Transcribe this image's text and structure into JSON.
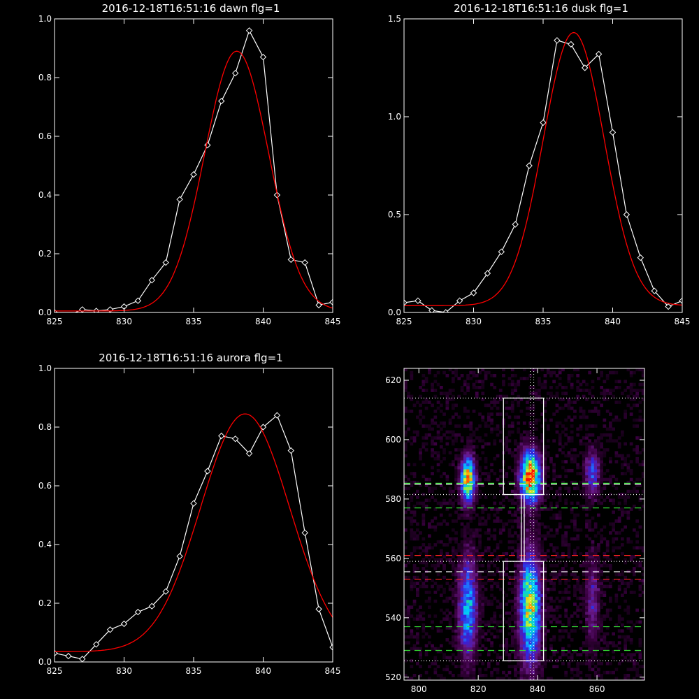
{
  "chart_data": [
    {
      "type": "line",
      "title": "2016-12-18T16:51:16 dawn flg=1",
      "xlim": [
        825,
        845
      ],
      "ylim": [
        0,
        1.0
      ],
      "xticks": [
        825,
        830,
        835,
        840,
        845
      ],
      "xtick_labels": [
        "825",
        "830",
        "835",
        "840",
        "845"
      ],
      "yticks": [
        0.0,
        0.2,
        0.4,
        0.6,
        0.8,
        1.0
      ],
      "ytick_labels": [
        "0.0",
        "0.2",
        "0.4",
        "0.6",
        "0.8",
        "1.0"
      ],
      "series": [
        {
          "color": "#ffffff",
          "marker": "diamond",
          "x": [
            825,
            826,
            827,
            828,
            829,
            830,
            831,
            832,
            833,
            834,
            835,
            836,
            837,
            838,
            839,
            840,
            841,
            842,
            843,
            844,
            845
          ],
          "y": [
            0.0,
            -0.01,
            0.01,
            0.005,
            0.01,
            0.02,
            0.04,
            0.11,
            0.17,
            0.385,
            0.47,
            0.57,
            0.72,
            0.815,
            0.96,
            0.87,
            0.4,
            0.18,
            0.17,
            0.025,
            0.035
          ]
        },
        {
          "color": "#ff0000",
          "fit": "gaussian",
          "amplitude": 0.885,
          "center": 838.1,
          "sigma": 2.3,
          "offset": 0.005
        }
      ]
    },
    {
      "type": "line",
      "title": "2016-12-18T16:51:16 dusk flg=1",
      "xlim": [
        825,
        845
      ],
      "ylim": [
        0,
        1.5
      ],
      "xticks": [
        825,
        830,
        835,
        840,
        845
      ],
      "xtick_labels": [
        "825",
        "830",
        "835",
        "840",
        "845"
      ],
      "yticks": [
        0.0,
        0.5,
        1.0,
        1.5
      ],
      "ytick_labels": [
        "0.0",
        "0.5",
        "1.0",
        "1.5"
      ],
      "series": [
        {
          "color": "#ffffff",
          "marker": "diamond",
          "x": [
            825,
            826,
            827,
            828,
            829,
            830,
            831,
            832,
            833,
            834,
            835,
            836,
            837,
            838,
            839,
            840,
            841,
            842,
            843,
            844,
            845
          ],
          "y": [
            0.05,
            0.06,
            0.01,
            0.0,
            0.06,
            0.1,
            0.2,
            0.31,
            0.45,
            0.75,
            0.97,
            1.39,
            1.37,
            1.25,
            1.32,
            0.92,
            0.5,
            0.28,
            0.11,
            0.03,
            0.06
          ]
        },
        {
          "color": "#ff0000",
          "fit": "gaussian",
          "amplitude": 1.395,
          "center": 837.2,
          "sigma": 2.2,
          "offset": 0.035
        }
      ]
    },
    {
      "type": "line",
      "title": "2016-12-18T16:51:16 aurora flg=1",
      "xlim": [
        825,
        845
      ],
      "ylim": [
        0,
        1.0
      ],
      "xticks": [
        825,
        830,
        835,
        840,
        845
      ],
      "xtick_labels": [
        "825",
        "830",
        "835",
        "840",
        "845"
      ],
      "yticks": [
        0.0,
        0.2,
        0.4,
        0.6,
        0.8,
        1.0
      ],
      "ytick_labels": [
        "0.0",
        "0.2",
        "0.4",
        "0.6",
        "0.8",
        "1.0"
      ],
      "series": [
        {
          "color": "#ffffff",
          "marker": "diamond",
          "x": [
            825,
            826,
            827,
            828,
            829,
            830,
            831,
            832,
            833,
            834,
            835,
            836,
            837,
            838,
            839,
            840,
            841,
            842,
            843,
            844,
            845
          ],
          "y": [
            0.03,
            0.02,
            0.01,
            0.06,
            0.11,
            0.13,
            0.17,
            0.19,
            0.24,
            0.36,
            0.54,
            0.65,
            0.77,
            0.76,
            0.71,
            0.8,
            0.84,
            0.72,
            0.44,
            0.18,
            0.05
          ]
        },
        {
          "color": "#ff0000",
          "fit": "gaussian",
          "amplitude": 0.81,
          "center": 838.7,
          "sigma": 3.2,
          "offset": 0.035
        }
      ]
    },
    {
      "type": "heatmap",
      "title": "",
      "xlim": [
        795,
        876
      ],
      "ylim": [
        519,
        624
      ],
      "xticks": [
        800,
        820,
        840,
        860
      ],
      "xtick_labels": [
        "800",
        "820",
        "840",
        "860"
      ],
      "yticks": [
        520,
        540,
        560,
        580,
        600,
        620
      ],
      "ytick_labels": [
        "520",
        "540",
        "560",
        "580",
        "600",
        "620"
      ],
      "colormap": [
        "#000000",
        "#3a0040",
        "#6a1a8a",
        "#3322dd",
        "#1e78ff",
        "#00c8ff",
        "#20e08a",
        "#e0f020",
        "#ff9000",
        "#ff1000"
      ],
      "blobs": [
        {
          "x": 816,
          "y": 586,
          "sx": 1.6,
          "sy": 5.0,
          "amp": 0.85
        },
        {
          "x": 837,
          "y": 587,
          "sx": 2.2,
          "sy": 5.5,
          "amp": 1.0
        },
        {
          "x": 858,
          "y": 588,
          "sx": 1.6,
          "sy": 5.0,
          "amp": 0.35
        },
        {
          "x": 816,
          "y": 543,
          "sx": 2.0,
          "sy": 11,
          "amp": 0.5
        },
        {
          "x": 837,
          "y": 543,
          "sx": 2.3,
          "sy": 12,
          "amp": 0.75
        },
        {
          "x": 858,
          "y": 545,
          "sx": 1.6,
          "sy": 10,
          "amp": 0.22
        }
      ],
      "boxes": [
        {
          "x0": 828.5,
          "x1": 842,
          "y0": 581.5,
          "y1": 614,
          "color": "#ffffff"
        },
        {
          "x0": 828.5,
          "x1": 842,
          "y0": 525.5,
          "y1": 559,
          "color": "#ffffff"
        },
        {
          "x0": 834.5,
          "x1": 835.5,
          "y0": 559,
          "y1": 581.5,
          "color": "#ffffff"
        }
      ],
      "hlines": [
        {
          "y": 614,
          "color": "#ffffff",
          "style": "dotted"
        },
        {
          "y": 585,
          "color": "#ffffff",
          "style": "dashed"
        },
        {
          "y": 585.3,
          "color": "#33dd33",
          "style": "dashed"
        },
        {
          "y": 581.5,
          "color": "#ffffff",
          "style": "dotted"
        },
        {
          "y": 577,
          "color": "#33dd33",
          "style": "dashed"
        },
        {
          "y": 561,
          "color": "#ff2222",
          "style": "dashed"
        },
        {
          "y": 559,
          "color": "#ffffff",
          "style": "dotted"
        },
        {
          "y": 555.5,
          "color": "#ffffff",
          "style": "dashed"
        },
        {
          "y": 553,
          "color": "#ff2222",
          "style": "dashed"
        },
        {
          "y": 537,
          "color": "#33dd33",
          "style": "dashed"
        },
        {
          "y": 529,
          "color": "#33dd33",
          "style": "dashed"
        },
        {
          "y": 525.5,
          "color": "#ffffff",
          "style": "dotted"
        }
      ],
      "vlines": [
        {
          "x": 837.5,
          "color": "#ffffff",
          "style": "dotted"
        },
        {
          "x": 838.7,
          "color": "#ffffff",
          "style": "dotted"
        }
      ]
    }
  ]
}
